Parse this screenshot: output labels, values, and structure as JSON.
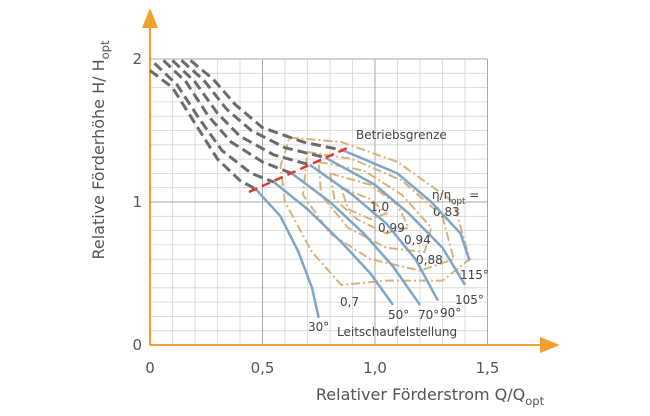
{
  "chart_data": {
    "type": "pump-map",
    "x_label": "Relativer Förderstrom Q/Q",
    "x_label_sub": "opt",
    "y_label": "Relative Förderhöhe H/ H",
    "y_label_sub": "opt",
    "xlim": [
      0,
      1.5
    ],
    "ylim": [
      0,
      2
    ],
    "xticks": [
      0,
      {
        "value": 0.5,
        "label": "0,5"
      },
      {
        "value": 1,
        "label": "1,0"
      },
      {
        "value": 1.5,
        "label": "1,5"
      }
    ],
    "yticks": [
      0,
      1,
      2
    ],
    "grid": true,
    "grid_step": 0.1,
    "vane_label": "Leitschaufelstellung",
    "series": [
      {
        "name": "30°",
        "unstable": {
          "x": [
            0,
            0.1,
            0.2,
            0.3,
            0.4,
            0.47
          ],
          "y": [
            1.92,
            1.8,
            1.55,
            1.3,
            1.15,
            1.09
          ]
        },
        "stable": {
          "x": [
            0.47,
            0.58,
            0.66,
            0.72,
            0.75
          ],
          "y": [
            1.09,
            0.9,
            0.65,
            0.4,
            0.19
          ]
        }
      },
      {
        "name": "50°",
        "unstable": {
          "x": [
            0.02,
            0.12,
            0.22,
            0.32,
            0.45,
            0.55
          ],
          "y": [
            1.97,
            1.82,
            1.58,
            1.36,
            1.2,
            1.14
          ]
        },
        "stable": {
          "x": [
            0.55,
            0.7,
            0.85,
            0.98,
            1.08
          ],
          "y": [
            1.14,
            0.95,
            0.72,
            0.5,
            0.28
          ]
        }
      },
      {
        "name": "70°",
        "unstable": {
          "x": [
            0.06,
            0.16,
            0.26,
            0.36,
            0.5,
            0.63
          ],
          "y": [
            1.99,
            1.84,
            1.6,
            1.42,
            1.28,
            1.2
          ]
        },
        "stable": {
          "x": [
            0.63,
            0.8,
            0.95,
            1.08,
            1.2
          ],
          "y": [
            1.2,
            1.0,
            0.78,
            0.55,
            0.28
          ]
        }
      },
      {
        "name": "90°",
        "unstable": {
          "x": [
            0.1,
            0.2,
            0.3,
            0.4,
            0.55,
            0.71
          ],
          "y": [
            1.99,
            1.84,
            1.62,
            1.46,
            1.33,
            1.26
          ]
        },
        "stable": {
          "x": [
            0.71,
            0.9,
            1.05,
            1.18,
            1.28
          ],
          "y": [
            1.26,
            1.05,
            0.85,
            0.6,
            0.31
          ]
        }
      },
      {
        "name": "105°",
        "unstable": {
          "x": [
            0.14,
            0.24,
            0.34,
            0.45,
            0.6,
            0.78
          ],
          "y": [
            1.99,
            1.85,
            1.65,
            1.5,
            1.38,
            1.31
          ]
        },
        "stable": {
          "x": [
            0.78,
            1.0,
            1.15,
            1.3,
            1.4
          ],
          "y": [
            1.31,
            1.12,
            0.92,
            0.68,
            0.42
          ]
        }
      },
      {
        "name": "115°",
        "unstable": {
          "x": [
            0.18,
            0.28,
            0.38,
            0.5,
            0.68,
            0.86
          ],
          "y": [
            1.99,
            1.86,
            1.68,
            1.52,
            1.42,
            1.36
          ]
        },
        "stable": {
          "x": [
            0.86,
            1.1,
            1.25,
            1.38,
            1.42
          ],
          "y": [
            1.36,
            1.2,
            1.0,
            0.78,
            0.59
          ]
        }
      }
    ],
    "unstable_color": "#6b6b6b",
    "stable_color": "#7fa6c6",
    "limit": {
      "name": "Betriebsgrenze",
      "color": "#e03a2f",
      "x": [
        0.44,
        0.88
      ],
      "y": [
        1.07,
        1.38
      ]
    },
    "efficiency": {
      "label": "η/η",
      "label_sub": "opt",
      "label_tail": " =",
      "color": "#d8b37a",
      "contours": [
        {
          "value": 0.7,
          "value_label": "0,7",
          "x": [
            0.62,
            0.85,
            1.1,
            1.35,
            1.42,
            1.3,
            1.05,
            0.85,
            0.72,
            0.6,
            0.58,
            0.62
          ],
          "y": [
            1.45,
            1.42,
            1.28,
            1.0,
            0.6,
            0.45,
            0.45,
            0.42,
            0.65,
            1.0,
            1.25,
            1.45
          ]
        },
        {
          "value": 0.83,
          "value_label": "0,83",
          "x": [
            0.7,
            0.9,
            1.12,
            1.3,
            1.35,
            1.2,
            0.98,
            0.8,
            0.68,
            0.7
          ],
          "y": [
            1.35,
            1.3,
            1.15,
            0.9,
            0.6,
            0.52,
            0.6,
            0.78,
            1.05,
            1.35
          ]
        },
        {
          "value": 0.88,
          "value_label": "0,88",
          "x": [
            0.75,
            0.95,
            1.12,
            1.25,
            1.22,
            1.05,
            0.88,
            0.76,
            0.75
          ],
          "y": [
            1.28,
            1.22,
            1.05,
            0.82,
            0.65,
            0.68,
            0.82,
            1.05,
            1.28
          ]
        },
        {
          "value": 0.94,
          "value_label": "0,94",
          "x": [
            0.8,
            0.98,
            1.1,
            1.15,
            1.05,
            0.92,
            0.82,
            0.8
          ],
          "y": [
            1.2,
            1.12,
            0.98,
            0.82,
            0.78,
            0.88,
            1.02,
            1.2
          ]
        },
        {
          "value": 0.99,
          "value_label": "0,99",
          "x": [
            0.85,
            0.98,
            1.05,
            0.98,
            0.88,
            0.85
          ],
          "y": [
            1.1,
            1.02,
            0.92,
            0.88,
            0.95,
            1.1
          ]
        },
        {
          "value": 1,
          "value_label": "1,0",
          "x": [],
          "y": []
        }
      ]
    }
  }
}
